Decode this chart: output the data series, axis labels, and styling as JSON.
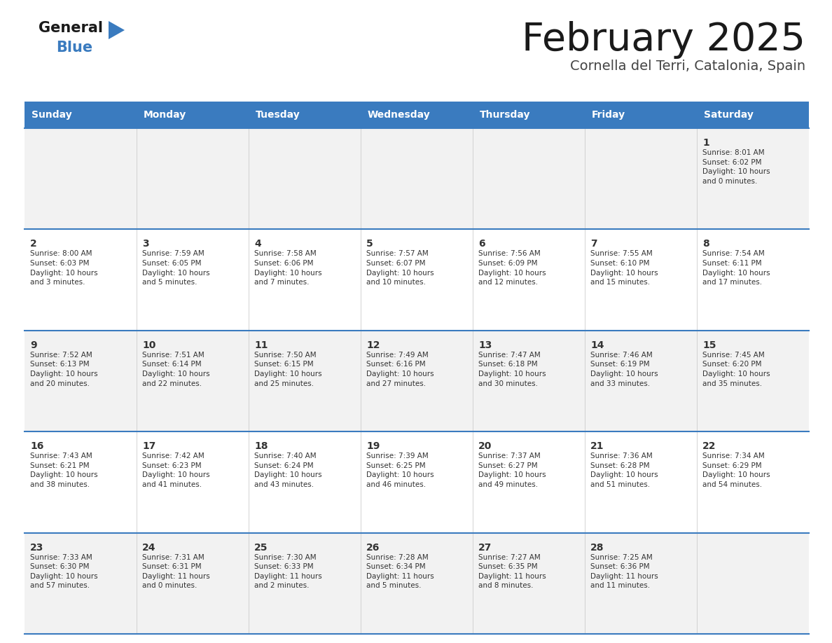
{
  "title": "February 2025",
  "subtitle": "Cornella del Terri, Catalonia, Spain",
  "header_color": "#3a7bbf",
  "header_text_color": "#ffffff",
  "cell_bg_color": "#f2f2f2",
  "cell_bg_white": "#ffffff",
  "day_text_color": "#333333",
  "info_text_color": "#333333",
  "border_color": "#3a7bbf",
  "days_of_week": [
    "Sunday",
    "Monday",
    "Tuesday",
    "Wednesday",
    "Thursday",
    "Friday",
    "Saturday"
  ],
  "weeks": [
    [
      null,
      null,
      null,
      null,
      null,
      null,
      {
        "day": "1",
        "sunrise": "8:01 AM",
        "sunset": "6:02 PM",
        "daylight": "10 hours\nand 0 minutes."
      }
    ],
    [
      {
        "day": "2",
        "sunrise": "8:00 AM",
        "sunset": "6:03 PM",
        "daylight": "10 hours\nand 3 minutes."
      },
      {
        "day": "3",
        "sunrise": "7:59 AM",
        "sunset": "6:05 PM",
        "daylight": "10 hours\nand 5 minutes."
      },
      {
        "day": "4",
        "sunrise": "7:58 AM",
        "sunset": "6:06 PM",
        "daylight": "10 hours\nand 7 minutes."
      },
      {
        "day": "5",
        "sunrise": "7:57 AM",
        "sunset": "6:07 PM",
        "daylight": "10 hours\nand 10 minutes."
      },
      {
        "day": "6",
        "sunrise": "7:56 AM",
        "sunset": "6:09 PM",
        "daylight": "10 hours\nand 12 minutes."
      },
      {
        "day": "7",
        "sunrise": "7:55 AM",
        "sunset": "6:10 PM",
        "daylight": "10 hours\nand 15 minutes."
      },
      {
        "day": "8",
        "sunrise": "7:54 AM",
        "sunset": "6:11 PM",
        "daylight": "10 hours\nand 17 minutes."
      }
    ],
    [
      {
        "day": "9",
        "sunrise": "7:52 AM",
        "sunset": "6:13 PM",
        "daylight": "10 hours\nand 20 minutes."
      },
      {
        "day": "10",
        "sunrise": "7:51 AM",
        "sunset": "6:14 PM",
        "daylight": "10 hours\nand 22 minutes."
      },
      {
        "day": "11",
        "sunrise": "7:50 AM",
        "sunset": "6:15 PM",
        "daylight": "10 hours\nand 25 minutes."
      },
      {
        "day": "12",
        "sunrise": "7:49 AM",
        "sunset": "6:16 PM",
        "daylight": "10 hours\nand 27 minutes."
      },
      {
        "day": "13",
        "sunrise": "7:47 AM",
        "sunset": "6:18 PM",
        "daylight": "10 hours\nand 30 minutes."
      },
      {
        "day": "14",
        "sunrise": "7:46 AM",
        "sunset": "6:19 PM",
        "daylight": "10 hours\nand 33 minutes."
      },
      {
        "day": "15",
        "sunrise": "7:45 AM",
        "sunset": "6:20 PM",
        "daylight": "10 hours\nand 35 minutes."
      }
    ],
    [
      {
        "day": "16",
        "sunrise": "7:43 AM",
        "sunset": "6:21 PM",
        "daylight": "10 hours\nand 38 minutes."
      },
      {
        "day": "17",
        "sunrise": "7:42 AM",
        "sunset": "6:23 PM",
        "daylight": "10 hours\nand 41 minutes."
      },
      {
        "day": "18",
        "sunrise": "7:40 AM",
        "sunset": "6:24 PM",
        "daylight": "10 hours\nand 43 minutes."
      },
      {
        "day": "19",
        "sunrise": "7:39 AM",
        "sunset": "6:25 PM",
        "daylight": "10 hours\nand 46 minutes."
      },
      {
        "day": "20",
        "sunrise": "7:37 AM",
        "sunset": "6:27 PM",
        "daylight": "10 hours\nand 49 minutes."
      },
      {
        "day": "21",
        "sunrise": "7:36 AM",
        "sunset": "6:28 PM",
        "daylight": "10 hours\nand 51 minutes."
      },
      {
        "day": "22",
        "sunrise": "7:34 AM",
        "sunset": "6:29 PM",
        "daylight": "10 hours\nand 54 minutes."
      }
    ],
    [
      {
        "day": "23",
        "sunrise": "7:33 AM",
        "sunset": "6:30 PM",
        "daylight": "10 hours\nand 57 minutes."
      },
      {
        "day": "24",
        "sunrise": "7:31 AM",
        "sunset": "6:31 PM",
        "daylight": "11 hours\nand 0 minutes."
      },
      {
        "day": "25",
        "sunrise": "7:30 AM",
        "sunset": "6:33 PM",
        "daylight": "11 hours\nand 2 minutes."
      },
      {
        "day": "26",
        "sunrise": "7:28 AM",
        "sunset": "6:34 PM",
        "daylight": "11 hours\nand 5 minutes."
      },
      {
        "day": "27",
        "sunrise": "7:27 AM",
        "sunset": "6:35 PM",
        "daylight": "11 hours\nand 8 minutes."
      },
      {
        "day": "28",
        "sunrise": "7:25 AM",
        "sunset": "6:36 PM",
        "daylight": "11 hours\nand 11 minutes."
      },
      null
    ]
  ],
  "logo_general_color": "#1a1a1a",
  "logo_blue_color": "#3a7bbf",
  "logo_triangle_color": "#3a7bbf"
}
